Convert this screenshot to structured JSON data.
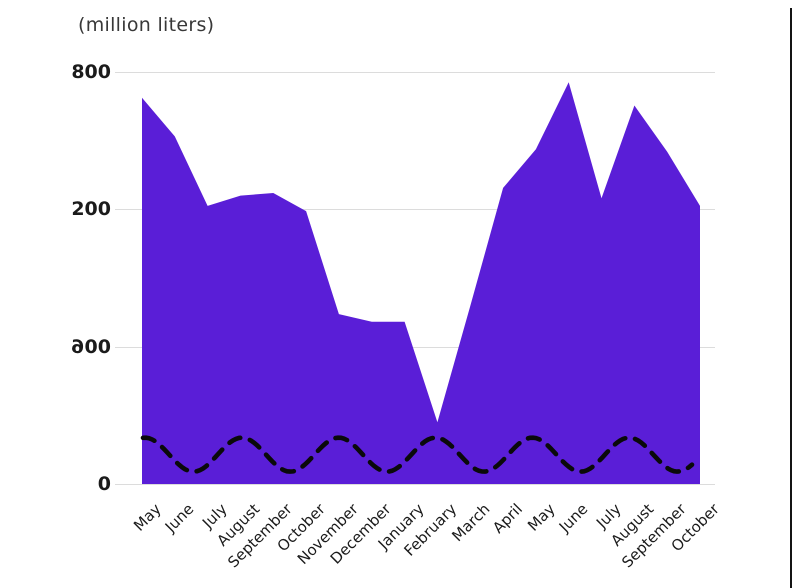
{
  "header": {
    "unit_label": "(million liters)"
  },
  "chart_data": {
    "type": "area",
    "title": "",
    "xlabel": "",
    "ylabel": "(million liters)",
    "unit": "million liters",
    "categories": [
      "May",
      "June",
      "July",
      "August",
      "September",
      "October",
      "November",
      "December",
      "January",
      "February",
      "March",
      "April",
      "May",
      "June",
      "July",
      "August",
      "September",
      "October"
    ],
    "values": [
      750,
      675,
      540,
      560,
      565,
      530,
      330,
      315,
      315,
      120,
      345,
      575,
      650,
      780,
      555,
      735,
      645,
      540
    ],
    "ylim": [
      0,
      800
    ],
    "grid": "horizontal gridlines only",
    "legend": "none",
    "series_color": "#5A1ED7",
    "gridline_color": "#dcdcdc",
    "y_axis_ticks_top_to_bottom": [
      {
        "text": "800"
      },
      {
        "text": "200"
      },
      {
        "text": "600",
        "flip_first": true
      },
      {
        "text": "0"
      }
    ],
    "source_quirk": "y-axis tick labels appear out of numeric order in the source image and the 6 of 600 is mirrored",
    "overlay_wave": {
      "shape": "sine",
      "stroke": "dashed",
      "color": "#0a0a0a",
      "value_mid": 57,
      "value_amplitude": 33,
      "period_months": 2.95
    }
  }
}
